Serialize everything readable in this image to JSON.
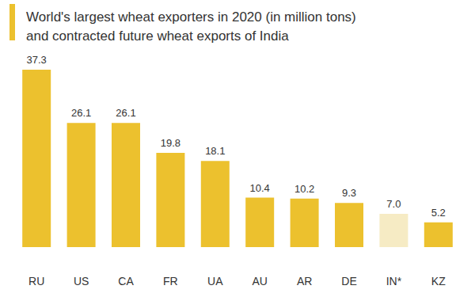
{
  "chart_data": {
    "type": "bar",
    "title": "World's largest wheat exporters in 2020 (in million tons)\nand contracted future wheat exports of India",
    "categories": [
      "RU",
      "US",
      "CA",
      "FR",
      "UA",
      "AU",
      "AR",
      "DE",
      "IN*",
      "KZ"
    ],
    "values": [
      37.3,
      26.1,
      26.1,
      19.8,
      18.1,
      10.4,
      10.2,
      9.3,
      7.0,
      5.2
    ],
    "value_labels": [
      "37.3",
      "26.1",
      "26.1",
      "19.8",
      "18.1",
      "10.4",
      "10.2",
      "9.3",
      "7.0",
      "5.2"
    ],
    "colors": [
      "#ecc12e",
      "#ecc12e",
      "#ecc12e",
      "#ecc12e",
      "#ecc12e",
      "#ecc12e",
      "#ecc12e",
      "#ecc12e",
      "#f6ebc4",
      "#ecc12e"
    ],
    "ylim": [
      0,
      37.3
    ],
    "grid": false,
    "data_labels": true,
    "tick_labels": "x"
  }
}
